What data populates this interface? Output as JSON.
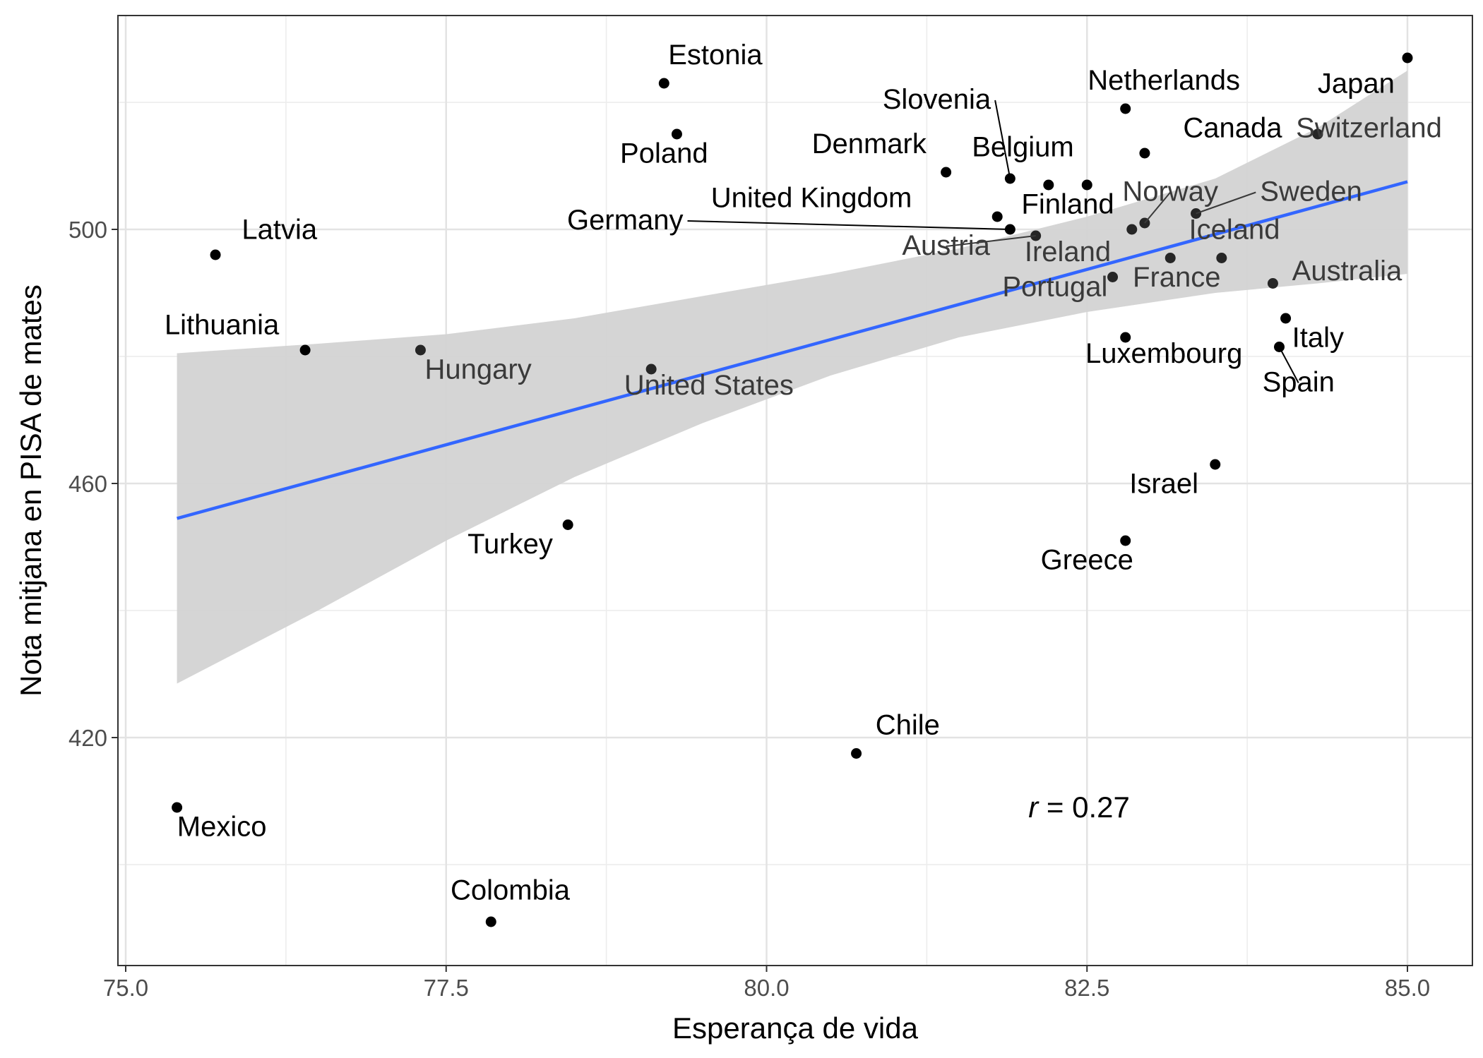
{
  "chart_data": {
    "type": "scatter",
    "xlabel": "Esperança de vida",
    "ylabel": "Nota mitjana en PISA de mates",
    "xlim": [
      74.9,
      86.0
    ],
    "ylim": [
      384,
      520
    ],
    "x_ticks": [
      75.0,
      77.5,
      80.0,
      82.5,
      85.0
    ],
    "x_tick_labels": [
      "75.0",
      "77.5",
      "80.0",
      "82.5",
      "85.0"
    ],
    "y_ticks": [
      420,
      460,
      500
    ],
    "y_tick_labels": [
      "420",
      "460",
      "500"
    ],
    "grid": true,
    "annotation": {
      "r_symbol": "r",
      "r_text": " = 0.27",
      "x": 82.5,
      "y": 409
    },
    "regression": {
      "color": "#3366FF",
      "ribbon_color": "#D3D3D3",
      "x_start": 75.4,
      "y_start": 454.5,
      "x_end": 85.0,
      "y_end": 507.5,
      "band": [
        {
          "x": 75.4,
          "lo": 428.5,
          "hi": 480.5
        },
        {
          "x": 76.5,
          "lo": 440.0,
          "hi": 482.0
        },
        {
          "x": 77.5,
          "lo": 451.0,
          "hi": 483.5
        },
        {
          "x": 78.5,
          "lo": 461.0,
          "hi": 486.0
        },
        {
          "x": 79.5,
          "lo": 469.5,
          "hi": 489.5
        },
        {
          "x": 80.5,
          "lo": 477.0,
          "hi": 493.0
        },
        {
          "x": 81.5,
          "lo": 483.0,
          "hi": 497.0
        },
        {
          "x": 82.5,
          "lo": 487.0,
          "hi": 502.0
        },
        {
          "x": 83.5,
          "lo": 490.0,
          "hi": 508.0
        },
        {
          "x": 84.3,
          "lo": 491.5,
          "hi": 516.0
        },
        {
          "x": 85.0,
          "lo": 493.0,
          "hi": 525.0
        }
      ]
    },
    "points": [
      {
        "name": "Estonia",
        "x": 79.2,
        "y": 523,
        "lx": 79.6,
        "ly": 526,
        "anchor": "middle",
        "dim": false,
        "seg": false
      },
      {
        "name": "Poland",
        "x": 79.3,
        "y": 515,
        "lx": 79.2,
        "ly": 510.5,
        "anchor": "middle",
        "dim": false,
        "seg": false
      },
      {
        "name": "Japan",
        "x": 85.0,
        "y": 527,
        "lx": 84.9,
        "ly": 521.5,
        "anchor": "end",
        "dim": false,
        "seg": false
      },
      {
        "name": "Netherlands",
        "x": 82.8,
        "y": 519,
        "lx": 83.1,
        "ly": 522,
        "anchor": "middle",
        "dim": false,
        "seg": false
      },
      {
        "name": "Slovenia",
        "x": 81.9,
        "y": 508,
        "lx": 81.75,
        "ly": 519,
        "anchor": "end",
        "dim": false,
        "seg": true
      },
      {
        "name": "Canada",
        "x": 82.95,
        "y": 512,
        "lx": 83.25,
        "ly": 514.5,
        "anchor": "start",
        "dim": false,
        "seg": false
      },
      {
        "name": "Switzerland",
        "x": 84.3,
        "y": 515,
        "lx": 84.7,
        "ly": 514.5,
        "anchor": "middle",
        "dim": true,
        "seg": false
      },
      {
        "name": "Denmark",
        "x": 81.4,
        "y": 509,
        "lx": 80.8,
        "ly": 512,
        "anchor": "middle",
        "dim": false,
        "seg": false
      },
      {
        "name": "Belgium",
        "x": 82.2,
        "y": 507,
        "lx": 82.0,
        "ly": 511.5,
        "anchor": "middle",
        "dim": false,
        "seg": false
      },
      {
        "name": "Sweden",
        "x": 83.35,
        "y": 502.5,
        "lx": 83.85,
        "ly": 504.5,
        "anchor": "start",
        "dim": true,
        "seg": true
      },
      {
        "name": "Norway",
        "x": 82.95,
        "y": 501,
        "lx": 83.15,
        "ly": 504.5,
        "anchor": "middle",
        "dim": true,
        "seg": true
      },
      {
        "name": "United Kingdom",
        "x": 81.8,
        "y": 502,
        "lx": 80.35,
        "ly": 503.5,
        "anchor": "middle",
        "dim": false,
        "seg": false
      },
      {
        "name": "Finland",
        "x": 82.5,
        "y": 507,
        "lx": 82.35,
        "ly": 502.5,
        "anchor": "middle",
        "dim": false,
        "seg": false
      },
      {
        "name": "Germany",
        "x": 81.9,
        "y": 500,
        "lx": 79.35,
        "ly": 500,
        "anchor": "end",
        "dim": false,
        "seg": true
      },
      {
        "name": "Austria",
        "x": 82.1,
        "y": 499,
        "lx": 81.4,
        "ly": 496,
        "anchor": "middle",
        "dim": true,
        "seg": true
      },
      {
        "name": "Ireland",
        "x": 82.7,
        "y": 492.5,
        "lx": 82.35,
        "ly": 495,
        "anchor": "middle",
        "dim": true,
        "seg": false
      },
      {
        "name": "Iceland",
        "x": 82.85,
        "y": 500,
        "lx": 83.65,
        "ly": 498.5,
        "anchor": "middle",
        "dim": true,
        "seg": false
      },
      {
        "name": "France",
        "x": 83.15,
        "y": 495.5,
        "lx": 83.2,
        "ly": 491,
        "anchor": "middle",
        "dim": true,
        "seg": false
      },
      {
        "name": "Portugal",
        "x": 83.55,
        "y": 495.5,
        "lx": 82.25,
        "ly": 489.5,
        "anchor": "middle",
        "dim": true,
        "seg": false
      },
      {
        "name": "Australia",
        "x": 83.95,
        "y": 491.5,
        "lx": 84.1,
        "ly": 492.0,
        "anchor": "start",
        "dim": true,
        "seg": false
      },
      {
        "name": "Latvia",
        "x": 75.7,
        "y": 496,
        "lx": 76.2,
        "ly": 498.5,
        "anchor": "middle",
        "dim": false,
        "seg": false
      },
      {
        "name": "Lithuania",
        "x": 76.4,
        "y": 481,
        "lx": 75.75,
        "ly": 483.5,
        "anchor": "middle",
        "dim": false,
        "seg": false
      },
      {
        "name": "Hungary",
        "x": 77.3,
        "y": 481,
        "lx": 77.75,
        "ly": 476.5,
        "anchor": "middle",
        "dim": true,
        "seg": false
      },
      {
        "name": "United States",
        "x": 79.1,
        "y": 478,
        "lx": 79.55,
        "ly": 474,
        "anchor": "middle",
        "dim": true,
        "seg": false
      },
      {
        "name": "Luxembourg",
        "x": 82.8,
        "y": 483,
        "lx": 83.1,
        "ly": 479,
        "anchor": "middle",
        "dim": false,
        "seg": false
      },
      {
        "name": "Italy",
        "x": 84.05,
        "y": 486,
        "lx": 84.1,
        "ly": 481.5,
        "anchor": "start",
        "dim": false,
        "seg": false
      },
      {
        "name": "Spain",
        "x": 84.0,
        "y": 481.5,
        "lx": 84.15,
        "ly": 474.5,
        "anchor": "middle",
        "dim": false,
        "seg": true
      },
      {
        "name": "Israel",
        "x": 83.5,
        "y": 463,
        "lx": 83.1,
        "ly": 458.5,
        "anchor": "middle",
        "dim": false,
        "seg": false
      },
      {
        "name": "Greece",
        "x": 82.8,
        "y": 451,
        "lx": 82.5,
        "ly": 446.5,
        "anchor": "middle",
        "dim": false,
        "seg": false
      },
      {
        "name": "Turkey",
        "x": 78.45,
        "y": 453.5,
        "lx": 78.0,
        "ly": 449,
        "anchor": "middle",
        "dim": false,
        "seg": false
      },
      {
        "name": "Chile",
        "x": 80.7,
        "y": 417.5,
        "lx": 80.85,
        "ly": 420.5,
        "anchor": "start",
        "dim": false,
        "seg": false
      },
      {
        "name": "Mexico",
        "x": 75.4,
        "y": 409,
        "lx": 75.75,
        "ly": 404.5,
        "anchor": "middle",
        "dim": false,
        "seg": false
      },
      {
        "name": "Colombia",
        "x": 77.85,
        "y": 391,
        "lx": 78.0,
        "ly": 394.5,
        "anchor": "middle",
        "dim": false,
        "seg": false
      }
    ]
  }
}
